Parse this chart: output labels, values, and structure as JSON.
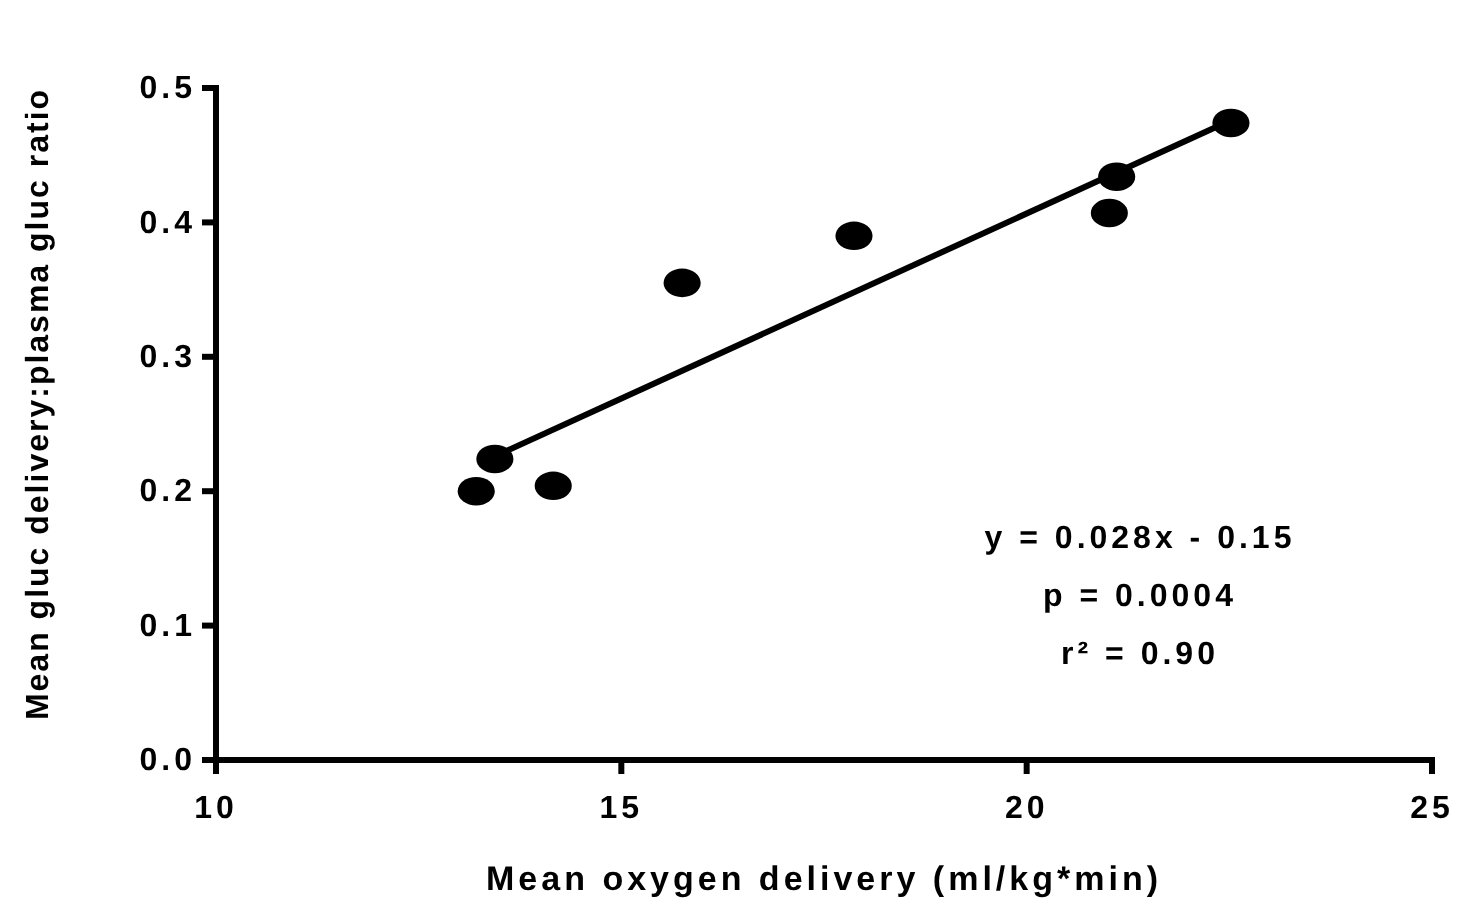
{
  "chart_data": {
    "type": "scatter",
    "xlabel": "Mean oxygen delivery (ml/kg*min)",
    "ylabel": "Mean gluc delivery:plasma gluc ratio",
    "xlim": [
      10,
      25
    ],
    "xticks": [
      10,
      15,
      20,
      25
    ],
    "ylim": [
      0,
      0.5
    ],
    "yticks": [
      {
        "value": 0,
        "label": "0.0"
      },
      0.1,
      0.2,
      0.3,
      0.4,
      0.5
    ],
    "grid": false,
    "series": [
      {
        "marker": "circle",
        "color": "#000000",
        "x": [
          13.21,
          13.44,
          14.16,
          15.75,
          17.87,
          21.02,
          21.11,
          22.52
        ],
        "values": [
          0.2,
          0.224,
          0.204,
          0.355,
          0.39,
          0.407,
          0.434,
          0.474
        ]
      },
      {
        "type": "line",
        "marker": "none",
        "color": "#000000",
        "x": [
          13.44,
          22.52
        ],
        "values": [
          0.226,
          0.476
        ]
      }
    ],
    "annotations": [
      "y = 0.028x - 0.15",
      "p = 0.0004",
      "r² = 0.90"
    ]
  }
}
